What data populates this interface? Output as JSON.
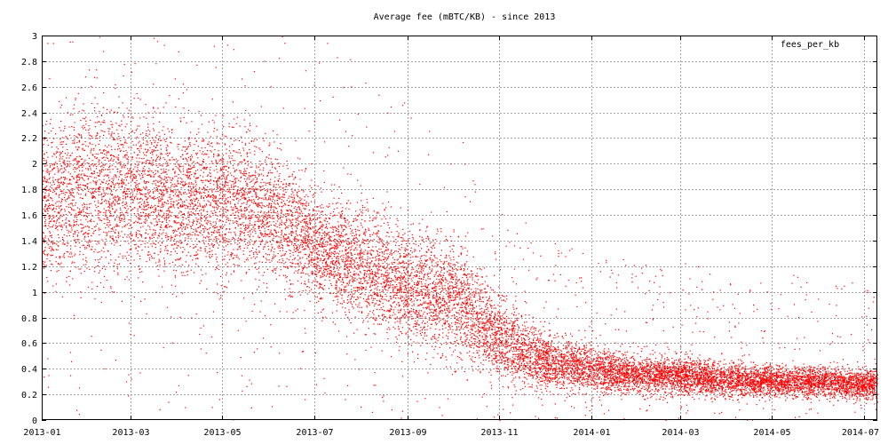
{
  "chart_data": {
    "type": "scatter",
    "title": "Average fee (mBTC/KB) - since 2013",
    "xlabel": "",
    "ylabel": "",
    "xlim": [
      "2013-01-01",
      "2014-07-10"
    ],
    "ylim": [
      0,
      3
    ],
    "grid": true,
    "legend_position": "top-right",
    "x_ticks": [
      "2013-01",
      "2013-03",
      "2013-05",
      "2013-07",
      "2013-09",
      "2013-11",
      "2014-01",
      "2014-03",
      "2014-05",
      "2014-07"
    ],
    "y_ticks": [
      "0",
      "0.2",
      "0.4",
      "0.6",
      "0.8",
      "1",
      "1.2",
      "1.4",
      "1.6",
      "1.8",
      "2",
      "2.2",
      "2.4",
      "2.6",
      "2.8",
      "3"
    ],
    "series": [
      {
        "name": "fees_per_kb",
        "color": "#ff0000",
        "trend": [
          {
            "x": "2013-01-01",
            "y": 1.7,
            "spread": 0.4
          },
          {
            "x": "2013-02-01",
            "y": 1.8,
            "spread": 0.45
          },
          {
            "x": "2013-03-01",
            "y": 1.8,
            "spread": 0.45
          },
          {
            "x": "2013-04-01",
            "y": 1.7,
            "spread": 0.4
          },
          {
            "x": "2013-05-01",
            "y": 1.7,
            "spread": 0.4
          },
          {
            "x": "2013-06-01",
            "y": 1.65,
            "spread": 0.35
          },
          {
            "x": "2013-07-01",
            "y": 1.35,
            "spread": 0.3
          },
          {
            "x": "2013-08-01",
            "y": 1.2,
            "spread": 0.3
          },
          {
            "x": "2013-09-01",
            "y": 1.05,
            "spread": 0.3
          },
          {
            "x": "2013-10-01",
            "y": 0.95,
            "spread": 0.3
          },
          {
            "x": "2013-11-01",
            "y": 0.65,
            "spread": 0.22
          },
          {
            "x": "2013-12-01",
            "y": 0.45,
            "spread": 0.15
          },
          {
            "x": "2014-01-01",
            "y": 0.4,
            "spread": 0.12
          },
          {
            "x": "2014-02-01",
            "y": 0.35,
            "spread": 0.1
          },
          {
            "x": "2014-03-01",
            "y": 0.35,
            "spread": 0.1
          },
          {
            "x": "2014-04-01",
            "y": 0.32,
            "spread": 0.09
          },
          {
            "x": "2014-05-01",
            "y": 0.3,
            "spread": 0.08
          },
          {
            "x": "2014-06-01",
            "y": 0.3,
            "spread": 0.08
          },
          {
            "x": "2014-07-10",
            "y": 0.28,
            "spread": 0.08
          }
        ]
      }
    ]
  }
}
